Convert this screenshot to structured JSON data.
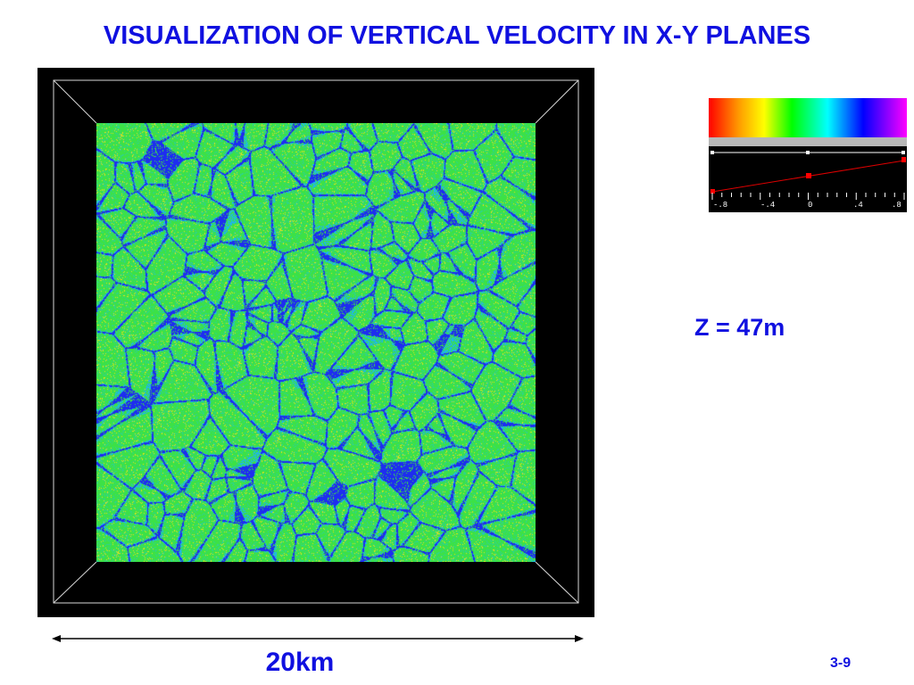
{
  "title": "VISUALIZATION OF VERTICAL VELOCITY IN X-Y PLANES",
  "visualization": {
    "description_icon": "velocity-field-image",
    "palette": [
      "#ff0000",
      "#ff9900",
      "#ffff00",
      "#00ff00",
      "#00ffff",
      "#0000ff",
      "#ff00ff"
    ],
    "field_colors": [
      "#3fe64a",
      "#2bd98a",
      "#24c8e8",
      "#1d3dff",
      "#e6e21a",
      "#ff4a1a"
    ]
  },
  "colorbar": {
    "tick_labels": [
      "-.8",
      "-.4",
      "0",
      ".4",
      ".8"
    ]
  },
  "z_label": "Z = 47m",
  "scale_label": "20km",
  "page_number": "3-9"
}
